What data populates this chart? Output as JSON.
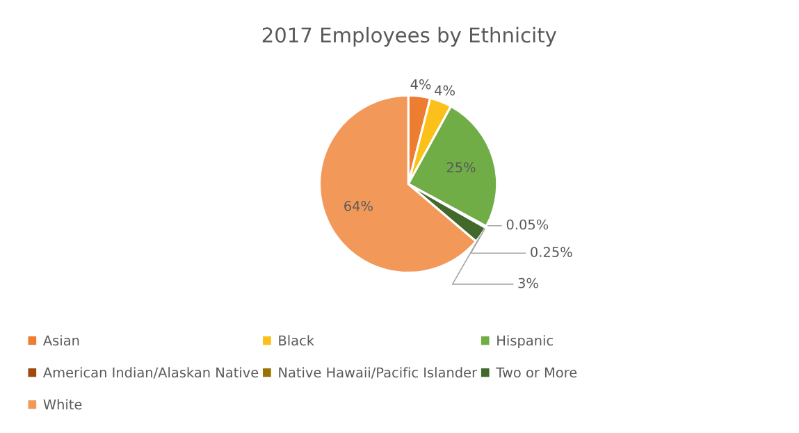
{
  "chart_data": {
    "type": "pie",
    "title": "2017 Employees by Ethnicity",
    "categories": [
      "Asian",
      "Black",
      "Hispanic",
      "American Indian/Alaskan Native",
      "Native Hawaii/Pacific Islander",
      "Two or More",
      "White"
    ],
    "values": [
      4,
      4,
      25,
      0.05,
      0.25,
      3,
      64
    ],
    "value_labels": [
      "4%",
      "4%",
      "25%",
      "0.05%",
      "0.25%",
      "3%",
      "64%"
    ],
    "colors": [
      "#ed7d31",
      "#fbc11a",
      "#70ad47",
      "#9e480e",
      "#997300",
      "#43682b",
      "#f29858"
    ],
    "legend": "bottom"
  }
}
